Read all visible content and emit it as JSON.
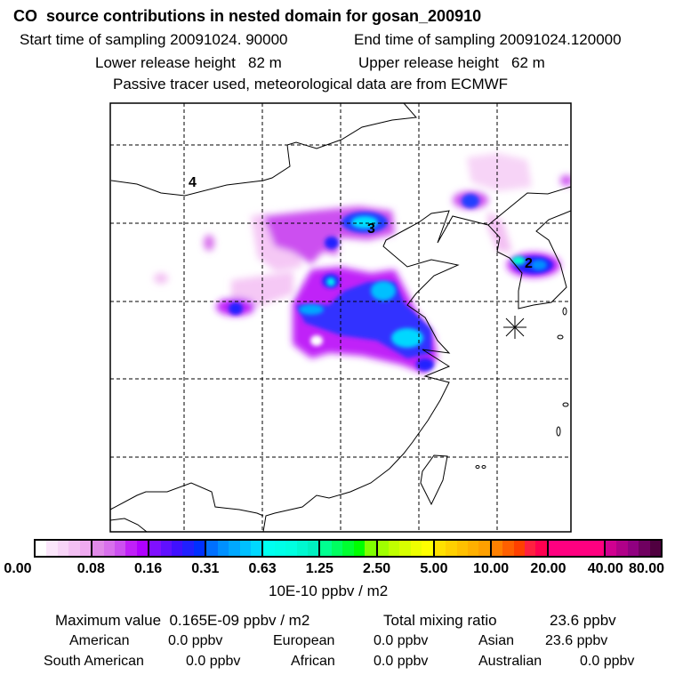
{
  "header": {
    "title": "CO  source contributions in nested domain for gosan_200910",
    "start_time": "Start time of sampling 20091024. 90000",
    "end_time": "End time of sampling 20091024.120000",
    "lower_height": "Lower release height   82 m",
    "upper_height": "Upper release height   62 m",
    "note": "Passive tracer used, meteorological data are from ECMWF"
  },
  "map": {
    "region_labels": [
      "4",
      "3",
      "2"
    ],
    "receptor_marker": "asterisk-icon"
  },
  "colorbar": {
    "labels": [
      "0.00",
      "0.08",
      "0.16",
      "0.31",
      "0.63",
      "1.25",
      "2.50",
      "5.00",
      "10.00",
      "20.00",
      "40.00",
      "80.00"
    ],
    "unit": "10E-10 ppbv / m2",
    "colors": [
      [
        "#ffffff",
        "#fbe6fb",
        "#f7d4f7",
        "#f3c0f3",
        "#efaaf0"
      ],
      [
        "#e08ae8",
        "#d870ec",
        "#cc50f0",
        "#c020f8",
        "#b000ff"
      ],
      [
        "#8010ff",
        "#6010ff",
        "#4010ff",
        "#2020ff",
        "#0030ff"
      ],
      [
        "#0070ff",
        "#0090ff",
        "#00a8ff",
        "#00c0ff",
        "#00d8ff"
      ],
      [
        "#00fff0",
        "#00ffe8",
        "#00ffe0",
        "#00f8d0",
        "#00f0c0"
      ],
      [
        "#00ff90",
        "#00ff60",
        "#00ff30",
        "#00ff00",
        "#80ff00"
      ],
      [
        "#a0ff00",
        "#c0ff00",
        "#d8ff00",
        "#eeff00",
        "#ffff00"
      ],
      [
        "#ffe000",
        "#ffd000",
        "#ffc000",
        "#ffb000",
        "#ffa000"
      ],
      [
        "#ff8000",
        "#ff6000",
        "#ff4000",
        "#ff2040",
        "#ff0050"
      ],
      [
        "#ff0080",
        "#ff0080",
        "#ff0080",
        "#ff0080",
        "#ff0080"
      ],
      [
        "#d00090",
        "#b00088",
        "#900080",
        "#700060",
        "#500040"
      ]
    ]
  },
  "summary": {
    "max_label": "Maximum value  0.165E-09 ppbv / m2",
    "total_label": "Total mixing ratio",
    "total_value": "23.6 ppbv",
    "american_label": "American",
    "american_value": "0.0 ppbv",
    "european_label": "European",
    "european_value": "0.0 ppbv",
    "asian_label": "Asian",
    "asian_value": "23.6 ppbv",
    "south_american_label": "South American",
    "south_american_value": "0.0 ppbv",
    "african_label": "African",
    "african_value": "0.0 ppbv",
    "australian_label": "Australian",
    "australian_value": "0.0 ppbv"
  }
}
